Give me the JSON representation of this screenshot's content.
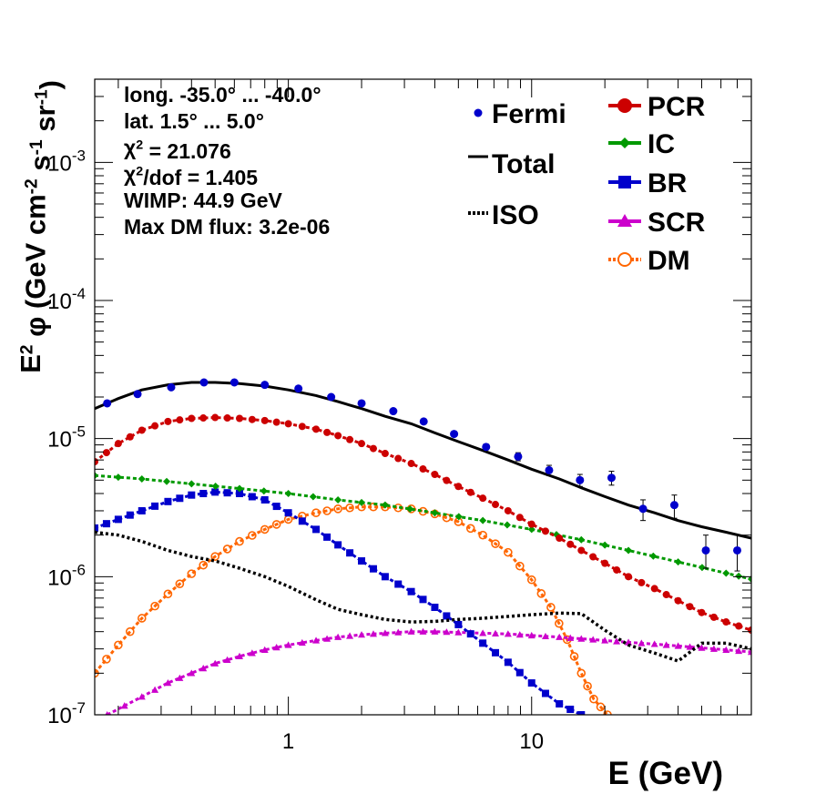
{
  "chart_data": {
    "type": "line",
    "x_scale": "log",
    "y_scale": "log",
    "xlim": [
      0.16,
      80
    ],
    "ylim": [
      1e-07,
      0.004
    ],
    "x_ticks": [
      1,
      10
    ],
    "x_tick_labels": [
      "1",
      "10"
    ],
    "y_ticks": [
      1e-07,
      1e-06,
      1e-05,
      0.0001,
      0.001
    ],
    "y_tick_labels": [
      {
        "base": "10",
        "exp": "-7"
      },
      {
        "base": "10",
        "exp": "-6"
      },
      {
        "base": "10",
        "exp": "-5"
      },
      {
        "base": "10",
        "exp": "-4"
      },
      {
        "base": "10",
        "exp": "-3"
      }
    ],
    "xlabel": "E (GeV)",
    "ylabel": {
      "parts": [
        {
          "t": "E",
          "s": "n"
        },
        {
          "t": "2",
          "s": "sup"
        },
        {
          "t": " φ (GeV cm",
          "s": "n"
        },
        {
          "t": "-2",
          "s": "sup"
        },
        {
          "t": " s",
          "s": "n"
        },
        {
          "t": "-1",
          "s": "sup"
        },
        {
          "t": " sr",
          "s": "n"
        },
        {
          "t": "-1",
          "s": "sup"
        },
        {
          "t": ")",
          "s": "n"
        }
      ]
    },
    "info_box": [
      [
        {
          "t": "long. -35.0° ... -40.0°",
          "s": "n"
        }
      ],
      [
        {
          "t": "lat. 1.5° ... 5.0°",
          "s": "n"
        }
      ],
      [
        {
          "t": "χ",
          "s": "n"
        },
        {
          "t": "2",
          "s": "sup"
        },
        {
          "t": " = 21.076",
          "s": "n"
        }
      ],
      [
        {
          "t": "χ",
          "s": "n"
        },
        {
          "t": "2",
          "s": "sup"
        },
        {
          "t": "/dof = 1.405",
          "s": "n"
        }
      ],
      [
        {
          "t": "WIMP: 44.9 GeV",
          "s": "n"
        }
      ],
      [
        {
          "t": "Max DM flux: 3.2e-06",
          "s": "n"
        }
      ]
    ],
    "legend_left": [
      {
        "name": "Fermi",
        "marker": "dot",
        "color": "#0000cc"
      },
      {
        "name": "Total",
        "marker": "line",
        "color": "#000000"
      },
      {
        "name": "ISO",
        "marker": "dotted",
        "color": "#000000"
      }
    ],
    "legend_right": [
      {
        "name": "PCR",
        "marker": "circle",
        "color": "#cc0000"
      },
      {
        "name": "IC",
        "marker": "diamond",
        "color": "#009900"
      },
      {
        "name": "BR",
        "marker": "square",
        "color": "#0000cc"
      },
      {
        "name": "SCR",
        "marker": "triangle",
        "color": "#cc00cc"
      },
      {
        "name": "DM",
        "marker": "opencircle",
        "color": "#ff6600"
      }
    ],
    "fermi": {
      "x": [
        0.18,
        0.24,
        0.33,
        0.45,
        0.6,
        0.8,
        1.1,
        1.5,
        2.0,
        2.7,
        3.6,
        4.8,
        6.5,
        8.8,
        11.8,
        15.8,
        21.3,
        28.7,
        38.6,
        52,
        70
      ],
      "y": [
        1.8e-05,
        2.1e-05,
        2.35e-05,
        2.55e-05,
        2.55e-05,
        2.45e-05,
        2.3e-05,
        2e-05,
        1.8e-05,
        1.58e-05,
        1.33e-05,
        1.08e-05,
        8.7e-06,
        7.4e-06,
        5.9e-06,
        5e-06,
        5.2e-06,
        3.1e-06,
        3.3e-06,
        1.55e-06,
        1.55e-06
      ],
      "err_low": [
        1.75e-05,
        2.05e-05,
        2.3e-05,
        2.5e-05,
        2.5e-05,
        2.4e-05,
        2.25e-05,
        1.96e-05,
        1.76e-05,
        1.54e-05,
        1.29e-05,
        1.04e-05,
        8.3e-06,
        6.9e-06,
        5.4e-06,
        4.5e-06,
        4.6e-06,
        2.55e-06,
        2.65e-06,
        1.15e-06,
        1.1e-06
      ],
      "err_high": [
        1.85e-05,
        2.15e-05,
        2.4e-05,
        2.6e-05,
        2.6e-05,
        2.5e-05,
        2.35e-05,
        2.04e-05,
        1.84e-05,
        1.62e-05,
        1.37e-05,
        1.12e-05,
        9.1e-06,
        7.9e-06,
        6.4e-06,
        5.5e-06,
        5.8e-06,
        3.6e-06,
        3.9e-06,
        2e-06,
        2e-06
      ]
    },
    "series": [
      {
        "name": "Total",
        "color": "#000000",
        "style": "solid",
        "marker": "none",
        "x": [
          0.16,
          0.2,
          0.25,
          0.32,
          0.4,
          0.5,
          0.63,
          0.8,
          1.0,
          1.3,
          1.6,
          2.0,
          2.5,
          3.2,
          4.0,
          5.0,
          6.3,
          8.0,
          10,
          13,
          16,
          20,
          25,
          32,
          40,
          50,
          63,
          80
        ],
        "y": [
          1.65e-05,
          1.95e-05,
          2.25e-05,
          2.45e-05,
          2.55e-05,
          2.55e-05,
          2.5e-05,
          2.4e-05,
          2.25e-05,
          2.05e-05,
          1.85e-05,
          1.65e-05,
          1.45e-05,
          1.28e-05,
          1.1e-05,
          9.5e-06,
          8.2e-06,
          7e-06,
          6e-06,
          5.1e-06,
          4.4e-06,
          3.8e-06,
          3.3e-06,
          2.9e-06,
          2.55e-06,
          2.3e-06,
          2.1e-06,
          1.9e-06
        ]
      },
      {
        "name": "PCR",
        "color": "#cc0000",
        "style": "markers",
        "marker": "circle",
        "x": [
          0.16,
          0.2,
          0.25,
          0.32,
          0.4,
          0.5,
          0.63,
          0.8,
          1.0,
          1.3,
          1.6,
          2.0,
          2.5,
          3.2,
          4.0,
          5.0,
          6.3,
          8.0,
          10,
          13,
          16,
          20,
          25,
          32,
          40,
          50,
          63,
          80
        ],
        "y": [
          6.8e-06,
          9.2e-06,
          1.15e-05,
          1.33e-05,
          1.4e-05,
          1.42e-05,
          1.4e-05,
          1.35e-05,
          1.28e-05,
          1.17e-05,
          1.05e-05,
          9.2e-06,
          7.8e-06,
          6.6e-06,
          5.5e-06,
          4.5e-06,
          3.7e-06,
          3e-06,
          2.4e-06,
          1.9e-06,
          1.55e-06,
          1.25e-06,
          1e-06,
          8.2e-07,
          6.7e-07,
          5.5e-07,
          4.7e-07,
          4.1e-07
        ]
      },
      {
        "name": "IC",
        "color": "#009900",
        "style": "markers",
        "marker": "diamond",
        "x": [
          0.16,
          0.25,
          0.4,
          0.63,
          1.0,
          1.6,
          2.5,
          4.0,
          6.3,
          10,
          16,
          25,
          40,
          63,
          80
        ],
        "y": [
          5.4e-06,
          5.1e-06,
          4.7e-06,
          4.35e-06,
          4e-06,
          3.6e-06,
          3.3e-06,
          2.9e-06,
          2.55e-06,
          2.2e-06,
          1.85e-06,
          1.55e-06,
          1.28e-06,
          1.06e-06,
          9.6e-07
        ]
      },
      {
        "name": "BR",
        "color": "#0000cc",
        "style": "markers",
        "marker": "square",
        "x": [
          0.16,
          0.2,
          0.25,
          0.32,
          0.4,
          0.5,
          0.63,
          0.8,
          1.0,
          1.3,
          1.6,
          2.0,
          2.5,
          3.2,
          4.0,
          5.0,
          6.3,
          8.0,
          10,
          13,
          16
        ],
        "y": [
          2.25e-06,
          2.6e-06,
          3e-06,
          3.5e-06,
          3.9e-06,
          4.1e-06,
          4e-06,
          3.6e-06,
          2.9e-06,
          2.2e-06,
          1.7e-06,
          1.3e-06,
          1e-06,
          7.8e-07,
          6e-07,
          4.5e-07,
          3.3e-07,
          2.4e-07,
          1.7e-07,
          1.2e-07,
          1e-07
        ]
      },
      {
        "name": "SCR",
        "color": "#cc00cc",
        "style": "markers",
        "marker": "triangle",
        "x": [
          0.18,
          0.25,
          0.32,
          0.4,
          0.5,
          0.63,
          0.8,
          1.0,
          1.3,
          1.6,
          2.0,
          2.5,
          3.2,
          4.0,
          5.0,
          6.3,
          8.0,
          10,
          13,
          16,
          20,
          25,
          32,
          40,
          50,
          63,
          80
        ],
        "y": [
          1e-07,
          1.35e-07,
          1.7e-07,
          2e-07,
          2.35e-07,
          2.65e-07,
          2.95e-07,
          3.2e-07,
          3.45e-07,
          3.65e-07,
          3.8e-07,
          3.9e-07,
          4e-07,
          4e-07,
          3.95e-07,
          3.9e-07,
          3.85e-07,
          3.75e-07,
          3.65e-07,
          3.55e-07,
          3.45e-07,
          3.35e-07,
          3.25e-07,
          3.15e-07,
          3.05e-07,
          2.95e-07,
          2.85e-07
        ]
      },
      {
        "name": "DM",
        "color": "#ff6600",
        "style": "markers",
        "marker": "opencircle",
        "x": [
          0.16,
          0.2,
          0.25,
          0.32,
          0.4,
          0.5,
          0.63,
          0.8,
          1.0,
          1.3,
          1.6,
          2.0,
          2.5,
          3.2,
          4.0,
          5.0,
          6.3,
          8.0,
          10,
          12,
          14,
          16,
          18,
          20.5
        ],
        "y": [
          2e-07,
          3.2e-07,
          5e-07,
          7.5e-07,
          1.05e-06,
          1.4e-06,
          1.8e-06,
          2.2e-06,
          2.6e-06,
          2.9e-06,
          3.1e-06,
          3.2e-06,
          3.2e-06,
          3.1e-06,
          2.85e-06,
          2.5e-06,
          2e-06,
          1.5e-06,
          9.5e-07,
          6e-07,
          3.5e-07,
          2e-07,
          1.3e-07,
          1e-07
        ]
      },
      {
        "name": "ISO",
        "color": "#000000",
        "style": "dotted",
        "marker": "none",
        "x": [
          0.16,
          0.2,
          0.25,
          0.32,
          0.4,
          0.5,
          0.63,
          0.8,
          1.0,
          1.3,
          1.6,
          2.0,
          2.5,
          3.2,
          4.0,
          5.0,
          6.3,
          8.0,
          10,
          13,
          16,
          20,
          25,
          32,
          40,
          50,
          63,
          80
        ],
        "y": [
          2.1e-06,
          2e-06,
          1.8e-06,
          1.55e-06,
          1.4e-06,
          1.3e-06,
          1.15e-06,
          1e-06,
          8.5e-07,
          6.8e-07,
          5.8e-07,
          5.3e-07,
          4.9e-07,
          4.7e-07,
          4.75e-07,
          4.9e-07,
          5e-07,
          5.15e-07,
          5.3e-07,
          5.45e-07,
          5.4e-07,
          4.1e-07,
          3.2e-07,
          2.8e-07,
          2.45e-07,
          3.3e-07,
          3.3e-07,
          3e-07
        ]
      }
    ]
  }
}
